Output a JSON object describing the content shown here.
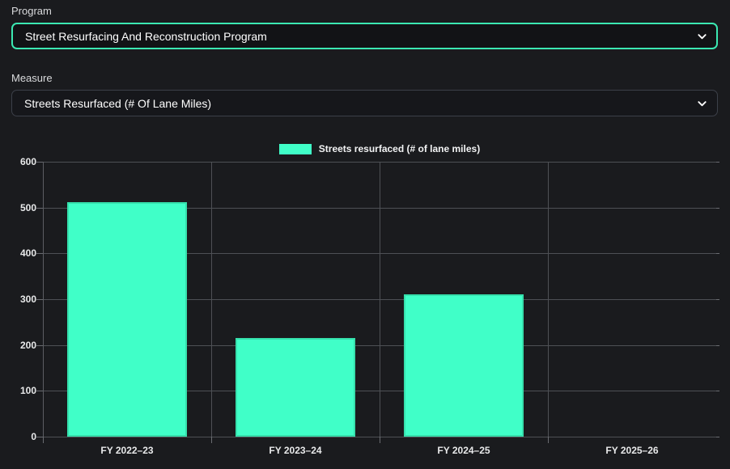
{
  "page": {
    "background": "#1a1b1e"
  },
  "program": {
    "label": "Program",
    "value": "Street Resurfacing And Reconstruction Program"
  },
  "measure": {
    "label": "Measure",
    "value": "Streets Resurfaced (# Of Lane Miles)"
  },
  "legend": {
    "label": "Streets resurfaced (# of lane miles)",
    "swatch_color": "#40ffc8"
  },
  "colors": {
    "accent": "#3be8b2",
    "bar_fill": "#40ffc8",
    "bar_border": "#35e0ac",
    "gridline": "#4e5055",
    "text": "#e8e9ea"
  },
  "chart_data": {
    "type": "bar",
    "categories": [
      "FY 2022–23",
      "FY 2023–24",
      "FY 2024–25",
      "FY 2025–26"
    ],
    "series": [
      {
        "name": "Streets resurfaced (# of lane miles)",
        "values": [
          512,
          215,
          310,
          0
        ]
      }
    ],
    "title": "",
    "xlabel": "",
    "ylabel": "",
    "ylim": [
      0,
      600
    ],
    "ytick_step": 100,
    "yticks": [
      0,
      100,
      200,
      300,
      400,
      500,
      600
    ],
    "grid": true,
    "legend_position": "top"
  }
}
